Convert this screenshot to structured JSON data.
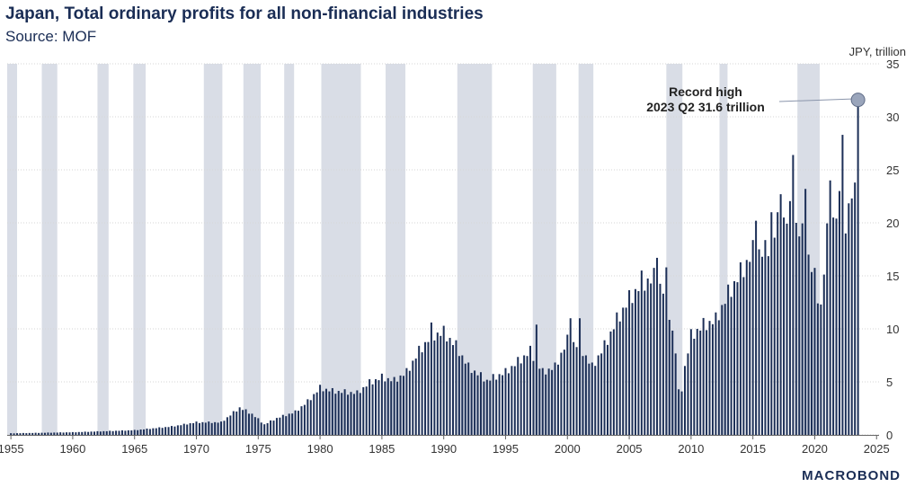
{
  "chart_data": {
    "type": "bar",
    "title": "Japan, Total ordinary profits for all non-financial industries",
    "subtitle": "Source: MOF",
    "ylabel": "JPY, trillion",
    "ylim": [
      0,
      35
    ],
    "yticks": [
      0,
      5,
      10,
      15,
      20,
      25,
      30,
      35
    ],
    "xlim": [
      1954.7,
      2025.2
    ],
    "xticks": [
      1955,
      1960,
      1965,
      1970,
      1975,
      1980,
      1985,
      1990,
      1995,
      2000,
      2005,
      2010,
      2015,
      2020,
      2025
    ],
    "frequency": "quarterly",
    "start": 1955.0,
    "end": 2023.5,
    "recessions": [
      [
        1954.7,
        1955.5
      ],
      [
        1957.5,
        1958.75
      ],
      [
        1962.0,
        1962.9
      ],
      [
        1964.9,
        1965.9
      ],
      [
        1970.6,
        1972.1
      ],
      [
        1973.8,
        1975.2
      ],
      [
        1977.1,
        1977.9
      ],
      [
        1980.1,
        1983.3
      ],
      [
        1985.3,
        1986.9
      ],
      [
        1991.1,
        1993.9
      ],
      [
        1997.2,
        1999.1
      ],
      [
        2000.9,
        2002.1
      ],
      [
        2008.0,
        2009.3
      ],
      [
        2012.3,
        2012.95
      ],
      [
        2018.6,
        2020.4
      ]
    ],
    "anchors": [
      [
        1955.0,
        0.15
      ],
      [
        1960.0,
        0.25
      ],
      [
        1965.0,
        0.45
      ],
      [
        1968.0,
        0.8
      ],
      [
        1970.0,
        1.2
      ],
      [
        1972.0,
        1.2
      ],
      [
        1973.5,
        2.6
      ],
      [
        1974.5,
        2.0
      ],
      [
        1975.5,
        1.0
      ],
      [
        1976.5,
        1.6
      ],
      [
        1978.0,
        2.2
      ],
      [
        1979.0,
        3.2
      ],
      [
        1980.0,
        4.5
      ],
      [
        1981.0,
        4.2
      ],
      [
        1983.0,
        4.0
      ],
      [
        1984.0,
        5.0
      ],
      [
        1985.0,
        5.5
      ],
      [
        1986.0,
        5.2
      ],
      [
        1987.0,
        6.0
      ],
      [
        1988.0,
        8.0
      ],
      [
        1989.0,
        9.5
      ],
      [
        1990.0,
        9.8
      ],
      [
        1991.0,
        8.5
      ],
      [
        1992.0,
        6.5
      ],
      [
        1993.5,
        5.2
      ],
      [
        1995.0,
        6.0
      ],
      [
        1996.0,
        7.0
      ],
      [
        1997.0,
        8.0
      ],
      [
        1998.0,
        6.0
      ],
      [
        1999.0,
        6.5
      ],
      [
        2000.0,
        9.0
      ],
      [
        2001.0,
        8.5
      ],
      [
        2002.0,
        6.5
      ],
      [
        2003.0,
        8.5
      ],
      [
        2004.0,
        11.0
      ],
      [
        2005.0,
        13.0
      ],
      [
        2006.0,
        14.5
      ],
      [
        2007.0,
        15.0
      ],
      [
        2008.0,
        13.5
      ],
      [
        2008.75,
        8.0
      ],
      [
        2009.0,
        4.5
      ],
      [
        2009.5,
        6.5
      ],
      [
        2010.0,
        9.5
      ],
      [
        2011.0,
        10.5
      ],
      [
        2012.0,
        11.0
      ],
      [
        2013.0,
        13.5
      ],
      [
        2014.0,
        15.5
      ],
      [
        2015.0,
        17.5
      ],
      [
        2016.0,
        17.5
      ],
      [
        2017.0,
        20.0
      ],
      [
        2018.0,
        21.0
      ],
      [
        2019.0,
        19.0
      ],
      [
        2020.0,
        15.0
      ],
      [
        2020.5,
        12.5
      ],
      [
        2021.0,
        19.0
      ],
      [
        2022.0,
        22.0
      ],
      [
        2023.0,
        23.0
      ]
    ],
    "overrides": [
      [
        1989.0,
        10.6
      ],
      [
        1997.5,
        10.4
      ],
      [
        2000.25,
        11.0
      ],
      [
        2001.0,
        11.0
      ],
      [
        2006.0,
        15.5
      ],
      [
        2007.25,
        16.7
      ],
      [
        2008.0,
        15.8
      ],
      [
        2009.0,
        4.3
      ],
      [
        2009.25,
        4.1
      ],
      [
        2015.25,
        20.2
      ],
      [
        2016.5,
        21.0
      ],
      [
        2017.25,
        22.7
      ],
      [
        2018.25,
        26.4
      ],
      [
        2019.25,
        23.2
      ],
      [
        2020.25,
        12.4
      ],
      [
        2020.5,
        12.3
      ],
      [
        2021.25,
        24.0
      ],
      [
        2022.0,
        23.0
      ],
      [
        2022.25,
        28.3
      ],
      [
        2022.5,
        19.0
      ],
      [
        2023.0,
        22.3
      ],
      [
        2023.25,
        23.8
      ],
      [
        2023.5,
        31.6
      ]
    ],
    "annotation": {
      "line1": "Record high",
      "line2": "2023 Q2 31.6 trillion",
      "x": 2023.5,
      "y": 31.6
    },
    "colors": {
      "bar": "#1c2f57",
      "recession": "#d9dde6",
      "grid": "#d6d6d6",
      "marker": "#9aa5bb"
    }
  },
  "brand": "MACROBOND"
}
